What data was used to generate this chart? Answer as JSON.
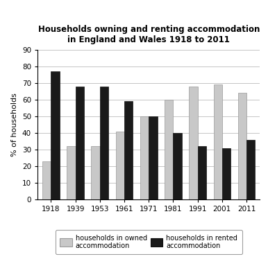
{
  "title": "Households owning and renting accommodation\nin England and Wales 1918 to 2011",
  "years": [
    "1918",
    "1939",
    "1953",
    "1961",
    "1971",
    "1981",
    "1991",
    "2001",
    "2011"
  ],
  "owned": [
    23,
    32,
    32,
    41,
    50,
    60,
    68,
    69,
    64
  ],
  "rented": [
    77,
    68,
    68,
    59,
    50,
    40,
    32,
    31,
    36
  ],
  "owned_color": "#c8c8c8",
  "rented_color": "#1a1a1a",
  "ylabel": "% of households",
  "ylim": [
    0,
    90
  ],
  "yticks": [
    0,
    10,
    20,
    30,
    40,
    50,
    60,
    70,
    80,
    90
  ],
  "legend_owned": "households in owned\naccommodation",
  "legend_rented": "households in rented\naccommodation",
  "bar_width": 0.35,
  "background_color": "#ffffff"
}
